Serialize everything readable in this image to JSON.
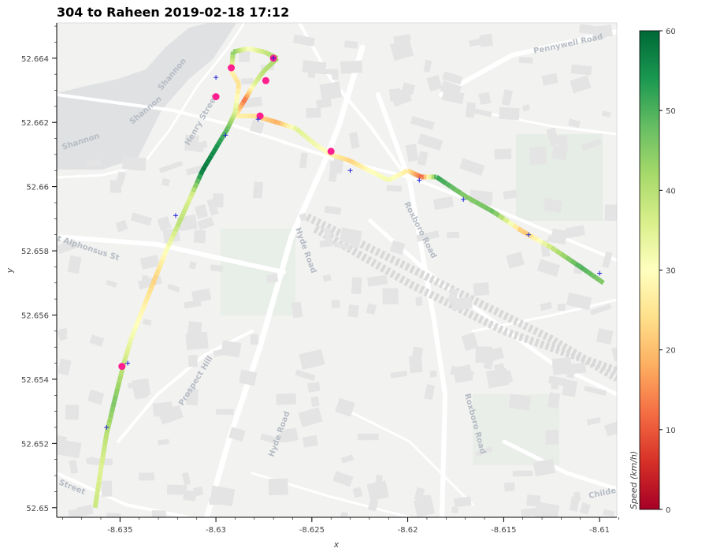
{
  "title": "304 to Raheen 2019-02-18 17:12",
  "axes": {
    "xlabel": "x",
    "ylabel": "y",
    "x_ticks": [
      "-8.635",
      "-8.63",
      "-8.625",
      "-8.62",
      "-8.615",
      "-8.61"
    ],
    "y_ticks": [
      "52.65",
      "52.652",
      "52.654",
      "52.656",
      "52.658",
      "52.66",
      "52.662",
      "52.664"
    ]
  },
  "colorbar": {
    "label": "Speed (km/h)",
    "ticks": [
      "0",
      "10",
      "20",
      "30",
      "40",
      "50",
      "60"
    ],
    "range": [
      0,
      60
    ],
    "colors": [
      "#a50026",
      "#d73027",
      "#f46d43",
      "#fdae61",
      "#fee08b",
      "#ffffbf",
      "#d9ef8b",
      "#a6d96a",
      "#66bd63",
      "#1a9850",
      "#006837"
    ]
  },
  "map_labels": {
    "shannon_1": "Shannon",
    "shannon_2": "Shannon",
    "shannon_3": "Shannon",
    "henry_street": "Henry Street",
    "pennywell_road": "Pennywell Road",
    "hyde_road_1": "Hyde Road",
    "hyde_road_2": "Hyde Road",
    "roxboro_road_1": "Roxboro Road",
    "roxboro_road_2": "Roxboro Road",
    "prospect_hill": "Prospect Hill",
    "alphonsus_st": "t Alphonsus St",
    "childers": "Childe",
    "street": "Street"
  },
  "chart_data": {
    "type": "scatter",
    "xlim": [
      -8.6383,
      -8.6091
    ],
    "ylim": [
      52.6497,
      52.6651
    ],
    "route": [
      [
        -8.6098,
        52.657,
        45
      ],
      [
        -8.611,
        52.6575,
        50
      ],
      [
        -8.6125,
        52.6581,
        38
      ],
      [
        -8.614,
        52.6586,
        20
      ],
      [
        -8.6155,
        52.6592,
        47
      ],
      [
        -8.617,
        52.6597,
        45
      ],
      [
        -8.6185,
        52.6603,
        52
      ],
      [
        -8.6193,
        52.6603,
        10
      ],
      [
        -8.62,
        52.6605,
        26
      ],
      [
        -8.621,
        52.6602,
        32
      ],
      [
        -8.622,
        52.6605,
        30
      ],
      [
        -8.623,
        52.6608,
        22
      ],
      [
        -8.624,
        52.661,
        28
      ],
      [
        -8.6248,
        52.6613,
        32
      ],
      [
        -8.6258,
        52.6618,
        35
      ],
      [
        -8.6268,
        52.662,
        18
      ],
      [
        -8.628,
        52.6622,
        25
      ],
      [
        -8.629,
        52.6622,
        28
      ],
      [
        -8.6285,
        52.6627,
        12
      ],
      [
        -8.628,
        52.6632,
        35
      ],
      [
        -8.6275,
        52.6636,
        40
      ],
      [
        -8.6268,
        52.664,
        42
      ],
      [
        -8.6275,
        52.6642,
        38
      ],
      [
        -8.6283,
        52.6643,
        30
      ],
      [
        -8.6291,
        52.6642,
        45
      ],
      [
        -8.6292,
        52.6636,
        28
      ],
      [
        -8.6288,
        52.6632,
        24
      ],
      [
        -8.629,
        52.6623,
        36
      ],
      [
        -8.6294,
        52.6618,
        48
      ],
      [
        -8.63,
        52.6612,
        55
      ],
      [
        -8.6307,
        52.6605,
        58
      ],
      [
        -8.6313,
        52.6597,
        35
      ],
      [
        -8.6319,
        52.6589,
        40
      ],
      [
        -8.6326,
        52.658,
        30
      ],
      [
        -8.6332,
        52.6571,
        22
      ],
      [
        -8.6338,
        52.6562,
        28
      ],
      [
        -8.6344,
        52.6553,
        32
      ],
      [
        -8.6348,
        52.6545,
        38
      ],
      [
        -8.6353,
        52.6533,
        46
      ],
      [
        -8.6357,
        52.6523,
        40
      ],
      [
        -8.636,
        52.6512,
        35
      ],
      [
        -8.6363,
        52.65,
        38
      ]
    ],
    "slow_points": [
      [
        -8.624,
        52.6611
      ],
      [
        -8.6292,
        52.6637
      ],
      [
        -8.627,
        52.664
      ],
      [
        -8.6277,
        52.6622
      ],
      [
        -8.6274,
        52.6633
      ],
      [
        -8.63,
        52.6628
      ],
      [
        -8.6349,
        52.6544
      ]
    ],
    "stops": [
      [
        -8.63,
        52.6634
      ],
      [
        -8.627,
        52.664
      ],
      [
        -8.6278,
        52.6621
      ],
      [
        -8.6295,
        52.6616
      ],
      [
        -8.623,
        52.6605
      ],
      [
        -8.6194,
        52.6602
      ],
      [
        -8.6171,
        52.6596
      ],
      [
        -8.6137,
        52.6585
      ],
      [
        -8.61,
        52.6573
      ],
      [
        -8.6321,
        52.6591
      ],
      [
        -8.6346,
        52.6545
      ],
      [
        -8.6357,
        52.6525
      ]
    ]
  }
}
